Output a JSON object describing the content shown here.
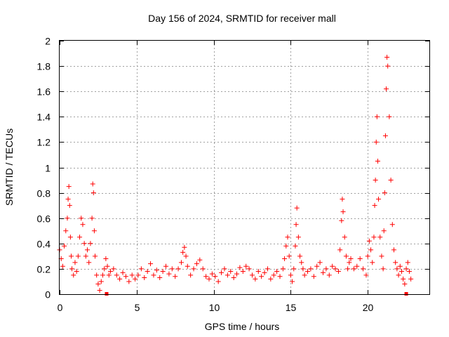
{
  "chart_data": {
    "type": "scatter",
    "title": "Day 156 of 2024, SRMTID for receiver mall",
    "xlabel": "GPS time / hours",
    "ylabel": "SRMTID / TECUs",
    "xlim": [
      0,
      24
    ],
    "ylim": [
      0,
      2
    ],
    "x_ticks": [
      0,
      5,
      10,
      15,
      20
    ],
    "x_tick_labels": [
      "0",
      "5",
      "10",
      "15",
      "20"
    ],
    "y_ticks": [
      0,
      0.2,
      0.4,
      0.6,
      0.8,
      1,
      1.2,
      1.4,
      1.6,
      1.8,
      2
    ],
    "y_tick_labels": [
      "0",
      "0.2",
      "0.4",
      "0.6",
      "0.8",
      "1",
      "1.2",
      "1.4",
      "1.6",
      "1.8",
      "2"
    ],
    "grid": true,
    "marker": "+",
    "marker_color": "#ff0000",
    "series": [
      {
        "name": "SRMTID",
        "x": [
          0.0,
          0.1,
          0.2,
          0.3,
          0.4,
          0.5,
          0.55,
          0.6,
          0.65,
          0.7,
          0.75,
          0.8,
          0.9,
          1.0,
          1.1,
          1.2,
          1.3,
          1.4,
          1.5,
          1.6,
          1.7,
          1.8,
          1.9,
          2.0,
          2.1,
          2.15,
          2.2,
          2.25,
          2.3,
          2.4,
          2.5,
          2.6,
          2.7,
          2.8,
          2.9,
          3.0,
          3.1,
          3.2,
          3.3,
          3.5,
          3.7,
          3.9,
          4.1,
          4.3,
          4.5,
          4.7,
          4.9,
          5.1,
          5.3,
          5.5,
          5.7,
          5.9,
          6.1,
          6.3,
          6.5,
          6.7,
          6.9,
          7.1,
          7.3,
          7.5,
          7.7,
          7.9,
          8.0,
          8.1,
          8.2,
          8.3,
          8.5,
          8.7,
          8.9,
          9.1,
          9.3,
          9.5,
          9.7,
          9.9,
          10.1,
          10.3,
          10.5,
          10.7,
          10.9,
          11.1,
          11.3,
          11.5,
          11.7,
          11.9,
          12.1,
          12.3,
          12.5,
          12.7,
          12.9,
          13.1,
          13.3,
          13.5,
          13.7,
          13.9,
          14.1,
          14.3,
          14.5,
          14.6,
          14.7,
          14.8,
          14.9,
          15.0,
          15.1,
          15.2,
          15.3,
          15.35,
          15.4,
          15.5,
          15.6,
          15.7,
          15.8,
          15.9,
          16.1,
          16.3,
          16.5,
          16.7,
          16.9,
          17.1,
          17.3,
          17.5,
          17.7,
          17.9,
          18.1,
          18.2,
          18.3,
          18.35,
          18.4,
          18.5,
          18.6,
          18.7,
          18.8,
          18.9,
          19.1,
          19.3,
          19.5,
          19.7,
          19.9,
          20.0,
          20.1,
          20.2,
          20.3,
          20.4,
          20.45,
          20.5,
          20.55,
          20.6,
          20.65,
          20.7,
          20.8,
          20.9,
          21.0,
          21.05,
          21.1,
          21.15,
          21.2,
          21.25,
          21.3,
          21.4,
          21.5,
          21.6,
          21.7,
          21.8,
          21.9,
          22.0,
          22.1,
          22.2,
          22.3,
          22.4,
          22.5,
          22.6,
          22.7,
          22.8
        ],
        "y": [
          0.35,
          0.28,
          0.22,
          0.38,
          0.5,
          0.6,
          0.75,
          0.85,
          0.7,
          0.45,
          0.3,
          0.2,
          0.15,
          0.25,
          0.18,
          0.3,
          0.45,
          0.6,
          0.55,
          0.4,
          0.3,
          0.35,
          0.25,
          0.4,
          0.6,
          0.87,
          0.8,
          0.5,
          0.3,
          0.15,
          0.08,
          0.03,
          0.1,
          0.15,
          0.2,
          0.28,
          0.22,
          0.15,
          0.18,
          0.2,
          0.15,
          0.12,
          0.17,
          0.14,
          0.1,
          0.15,
          0.12,
          0.15,
          0.2,
          0.13,
          0.18,
          0.24,
          0.15,
          0.19,
          0.13,
          0.18,
          0.22,
          0.16,
          0.2,
          0.14,
          0.2,
          0.25,
          0.33,
          0.37,
          0.3,
          0.22,
          0.15,
          0.2,
          0.24,
          0.27,
          0.2,
          0.14,
          0.12,
          0.16,
          0.14,
          0.1,
          0.17,
          0.2,
          0.15,
          0.18,
          0.13,
          0.16,
          0.21,
          0.18,
          0.22,
          0.2,
          0.15,
          0.12,
          0.18,
          0.14,
          0.17,
          0.2,
          0.12,
          0.15,
          0.18,
          0.14,
          0.2,
          0.28,
          0.38,
          0.45,
          0.3,
          0.15,
          0.1,
          0.2,
          0.38,
          0.55,
          0.68,
          0.45,
          0.3,
          0.25,
          0.2,
          0.15,
          0.18,
          0.2,
          0.14,
          0.22,
          0.25,
          0.17,
          0.2,
          0.15,
          0.22,
          0.2,
          0.18,
          0.35,
          0.58,
          0.75,
          0.65,
          0.45,
          0.3,
          0.2,
          0.25,
          0.28,
          0.2,
          0.22,
          0.28,
          0.2,
          0.15,
          0.3,
          0.42,
          0.35,
          0.25,
          0.45,
          0.7,
          0.9,
          1.2,
          1.4,
          1.05,
          0.75,
          0.45,
          0.3,
          0.2,
          0.5,
          0.8,
          1.25,
          1.62,
          1.87,
          1.8,
          1.4,
          0.9,
          0.55,
          0.35,
          0.25,
          0.2,
          0.15,
          0.22,
          0.18,
          0.12,
          0.08,
          0.2,
          0.25,
          0.18,
          0.12
        ]
      }
    ],
    "near_zero_markers_x": [
      3.05,
      22.5
    ]
  }
}
